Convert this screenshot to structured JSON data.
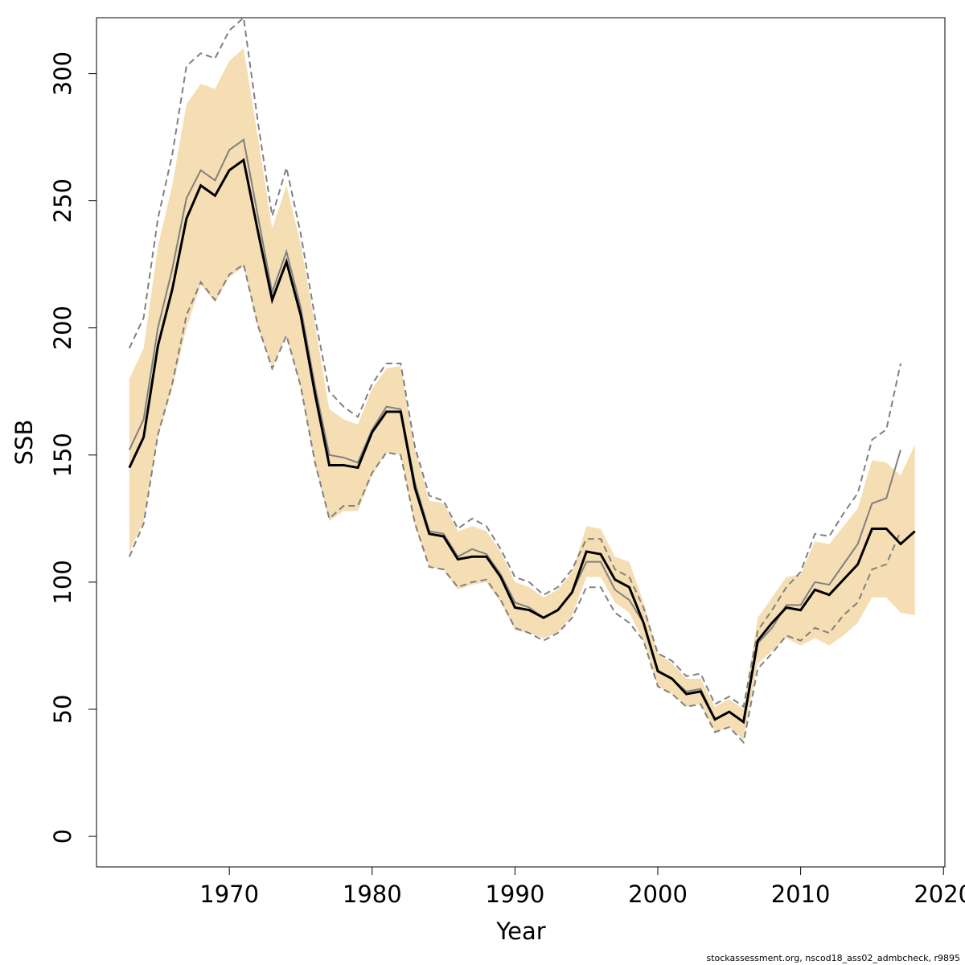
{
  "chart_data": {
    "type": "line",
    "xlabel": "Year",
    "ylabel": "SSB",
    "footnote": "stockassessment.org, nscod18_ass02_admbcheck, r9895",
    "x": [
      1963,
      1964,
      1965,
      1966,
      1967,
      1968,
      1969,
      1970,
      1971,
      1972,
      1973,
      1974,
      1975,
      1976,
      1977,
      1978,
      1979,
      1980,
      1981,
      1982,
      1983,
      1984,
      1985,
      1986,
      1987,
      1988,
      1989,
      1990,
      1991,
      1992,
      1993,
      1994,
      1995,
      1996,
      1997,
      1998,
      1999,
      2000,
      2001,
      2002,
      2003,
      2004,
      2005,
      2006,
      2007,
      2008,
      2009,
      2010,
      2011,
      2012,
      2013,
      2014,
      2015,
      2016,
      2017,
      2018
    ],
    "band": {
      "color": "#f5deb3",
      "upper": [
        180,
        192,
        232,
        256,
        288,
        296,
        294,
        305,
        310,
        275,
        239,
        256,
        233,
        201,
        168,
        164,
        162,
        176,
        184,
        185,
        152,
        132,
        131,
        120,
        122,
        120,
        112,
        100,
        98,
        94,
        97,
        104,
        122,
        121,
        110,
        108,
        92,
        72,
        68,
        62,
        62,
        51,
        54,
        50,
        86,
        94,
        102,
        103,
        116,
        115,
        122,
        129,
        148,
        147,
        142,
        154
      ],
      "lower": [
        112,
        124,
        157,
        176,
        200,
        217,
        210,
        220,
        224,
        200,
        184,
        197,
        176,
        146,
        124,
        128,
        128,
        142,
        151,
        150,
        122,
        106,
        105,
        97,
        99,
        100,
        92,
        81,
        80,
        78,
        80,
        87,
        102,
        102,
        92,
        88,
        77,
        59,
        56,
        51,
        52,
        41,
        43,
        38,
        68,
        73,
        78,
        75,
        78,
        75,
        79,
        84,
        94,
        94,
        88,
        87
      ]
    },
    "series": [
      {
        "color": "#808080",
        "dash": true,
        "values": [
          192,
          204,
          243,
          268,
          303,
          308,
          306,
          317,
          322,
          281,
          244,
          263,
          237,
          204,
          175,
          169,
          165,
          178,
          186,
          186,
          153,
          134,
          132,
          121,
          125,
          122,
          113,
          102,
          100,
          95,
          98,
          105,
          117,
          117,
          105,
          102,
          90,
          72,
          69,
          63,
          64,
          52,
          55,
          51,
          81,
          89,
          98,
          104,
          119,
          118,
          127,
          135,
          156,
          160,
          186,
          null
        ]
      },
      {
        "color": "#808080",
        "dash": true,
        "values": [
          110,
          123,
          158,
          178,
          205,
          218,
          211,
          221,
          225,
          201,
          184,
          197,
          177,
          147,
          125,
          130,
          130,
          143,
          151,
          150,
          123,
          106,
          105,
          98,
          100,
          101,
          93,
          82,
          80,
          77,
          80,
          86,
          98,
          98,
          88,
          84,
          77,
          59,
          56,
          51,
          52,
          41,
          43,
          37,
          66,
          72,
          79,
          77,
          82,
          80,
          87,
          92,
          105,
          107,
          120,
          null
        ]
      },
      {
        "color": "#808080",
        "dash": false,
        "values": [
          152,
          164,
          200,
          223,
          251,
          262,
          258,
          270,
          274,
          244,
          214,
          230,
          208,
          177,
          150,
          149,
          147,
          160,
          169,
          168,
          139,
          120,
          119,
          110,
          113,
          111,
          103,
          92,
          90,
          86,
          89,
          96,
          108,
          108,
          97,
          93,
          84,
          65,
          62,
          57,
          58,
          46,
          49,
          45,
          76,
          82,
          91,
          91,
          100,
          99,
          107,
          115,
          131,
          133,
          152,
          null
        ]
      },
      {
        "color": "#000000",
        "dash": false,
        "values": [
          145,
          157,
          193,
          215,
          243,
          256,
          252,
          262,
          266,
          238,
          211,
          226,
          205,
          174,
          146,
          146,
          145,
          159,
          167,
          167,
          137,
          119,
          118,
          109,
          110,
          110,
          102,
          90,
          89,
          86,
          89,
          96,
          112,
          111,
          101,
          98,
          84,
          65,
          62,
          56,
          57,
          46,
          49,
          45,
          77,
          84,
          90,
          89,
          97,
          95,
          101,
          107,
          121,
          121,
          115,
          120
        ]
      }
    ],
    "xlim": [
      1960.7,
      2020.1
    ],
    "ylim": [
      -12,
      322
    ],
    "xticks": [
      1970,
      1980,
      1990,
      2000,
      2010,
      2020
    ],
    "yticks": [
      0,
      50,
      100,
      150,
      200,
      250,
      300
    ]
  }
}
